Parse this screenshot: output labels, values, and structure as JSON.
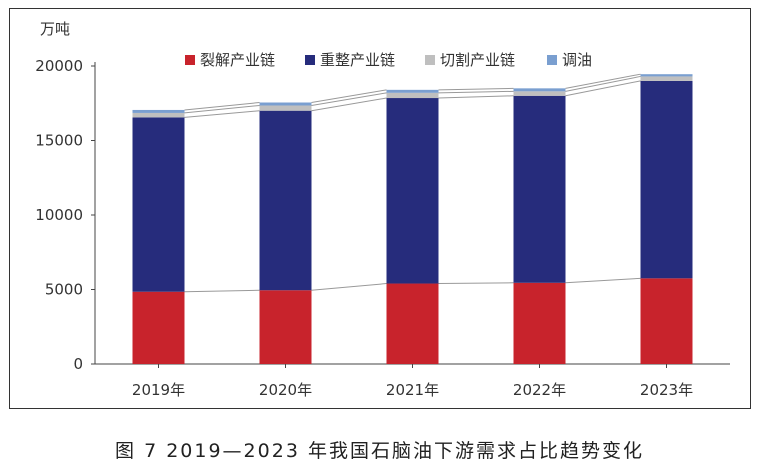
{
  "chart_data": {
    "type": "bar",
    "stacked": true,
    "unit": "万吨",
    "categories": [
      "2019年",
      "2020年",
      "2021年",
      "2022年",
      "2023年"
    ],
    "series": [
      {
        "name": "裂解产业链",
        "color": "#c8232c",
        "values": [
          4850,
          4950,
          5400,
          5450,
          5750
        ]
      },
      {
        "name": "重整产业链",
        "color": "#262c7c",
        "values": [
          11700,
          12050,
          12450,
          12550,
          13250
        ]
      },
      {
        "name": "切割产业链",
        "color": "#bfbfbf",
        "values": [
          300,
          350,
          350,
          300,
          300
        ]
      },
      {
        "name": "调油",
        "color": "#7a9fd0",
        "values": [
          200,
          200,
          200,
          200,
          150
        ]
      }
    ],
    "yticks": [
      "0",
      "5000",
      "10000",
      "15000",
      "20000"
    ],
    "ylim": [
      0,
      20000
    ],
    "legend": "top",
    "grid": false
  },
  "caption": "图 7  2019—2023 年我国石脑油下游需求占比趋势变化"
}
